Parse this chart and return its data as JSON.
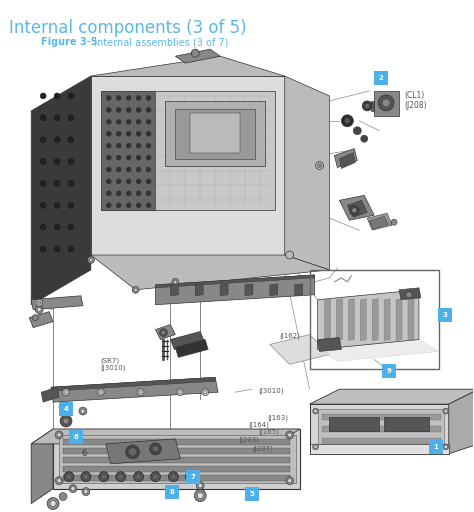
{
  "title": "Internal components (3 of 5)",
  "subtitle_bold": "Figure 3-5",
  "subtitle_rest": " Internal assemblies (3 of 7)",
  "title_color": "#5BB8E8",
  "subtitle_color": "#5BB8E8",
  "bg_color": "#FFFFFF",
  "label_bg": "#4EB0E8",
  "label_text_color": "#FFFFFF",
  "line_color": "#888888",
  "part_dark": "#555555",
  "part_mid": "#888888",
  "part_light": "#BBBBBB",
  "part_vlight": "#DDDDDD",
  "part_edge": "#333333",
  "ann_color": "#555555"
}
